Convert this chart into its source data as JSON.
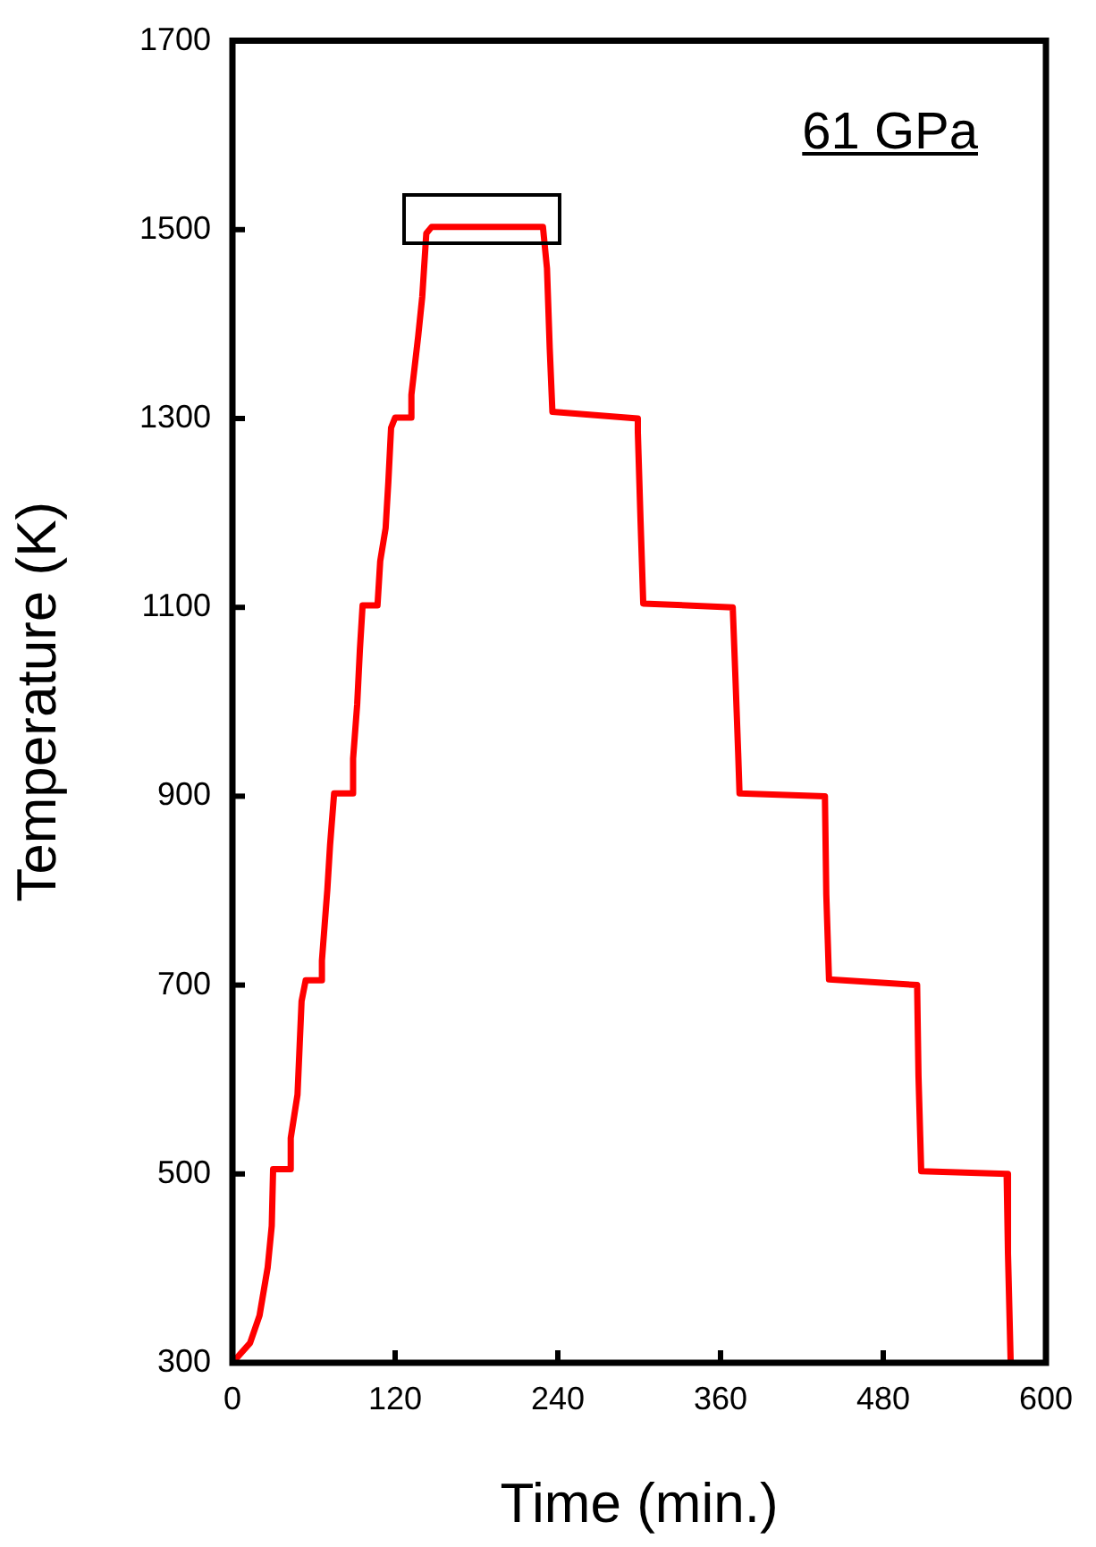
{
  "chart_data": {
    "type": "line",
    "xlabel": "Time (min.)",
    "ylabel": "Temperature (K)",
    "annotations": [
      "61 GPa"
    ],
    "xlim": [
      0,
      600
    ],
    "xticks": [
      0,
      120,
      240,
      360,
      480,
      600
    ],
    "ylim": [
      300,
      1700
    ],
    "yticks": [
      300,
      500,
      700,
      900,
      1100,
      1300,
      1500,
      1700
    ],
    "grid": false,
    "legend": false,
    "marker": "none",
    "line_style": "solid",
    "series": [
      {
        "color": "#ff0000",
        "x": [
          0,
          13,
          20,
          26,
          29,
          30,
          43,
          43,
          48,
          51,
          54,
          66,
          66,
          70,
          72,
          75,
          89,
          89,
          92,
          94,
          96,
          107,
          109,
          113,
          115,
          117,
          120,
          132,
          132,
          137,
          140,
          143,
          147,
          229,
          232,
          234,
          236,
          299,
          299,
          301,
          303,
          369,
          371,
          373,
          374,
          437,
          438,
          440,
          505,
          506,
          508,
          571,
          572,
          574
        ],
        "values": [
          300,
          321,
          350,
          401,
          445,
          505,
          505,
          538,
          584,
          683,
          705,
          705,
          726,
          801,
          848,
          903,
          903,
          940,
          997,
          1055,
          1102,
          1102,
          1149,
          1184,
          1233,
          1290,
          1301,
          1301,
          1325,
          1387,
          1429,
          1496,
          1503,
          1503,
          1459,
          1375,
          1307,
          1300,
          1286,
          1192,
          1104,
          1100,
          1025,
          946,
          903,
          900,
          796,
          706,
          700,
          604,
          503,
          500,
          416,
          300
        ]
      }
    ]
  }
}
